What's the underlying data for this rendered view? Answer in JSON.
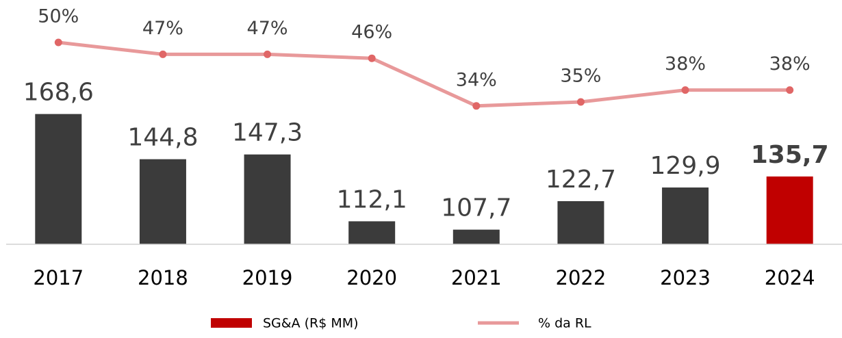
{
  "chart_data": {
    "type": "bar_line",
    "categories": [
      "2017",
      "2018",
      "2019",
      "2020",
      "2021",
      "2022",
      "2023",
      "2024"
    ],
    "series": [
      {
        "name": "SG&A (R$ MM)",
        "color": "#c00000",
        "colors": [
          "#3b3b3b",
          "#3b3b3b",
          "#3b3b3b",
          "#3b3b3b",
          "#3b3b3b",
          "#3b3b3b",
          "#3b3b3b",
          "#c00000"
        ],
        "values": [
          168.6,
          144.8,
          147.3,
          112.1,
          107.7,
          122.7,
          129.9,
          135.7
        ],
        "value_labels": [
          "168,6",
          "144,8",
          "147,3",
          "112,1",
          "107,7",
          "122,7",
          "129,9",
          "135,7"
        ]
      },
      {
        "name": "% da RL",
        "color": "#e8999a",
        "marker_color": "#e06666",
        "axis": "y2",
        "values": [
          50,
          47,
          47,
          46,
          34,
          35,
          38,
          38
        ],
        "value_labels": [
          "50%",
          "47%",
          "47%",
          "46%",
          "34%",
          "35%",
          "38%",
          "38%"
        ]
      }
    ],
    "ylim": [
      100,
      230
    ],
    "y2lim": [
      0,
      60
    ],
    "legend": "bottom"
  }
}
